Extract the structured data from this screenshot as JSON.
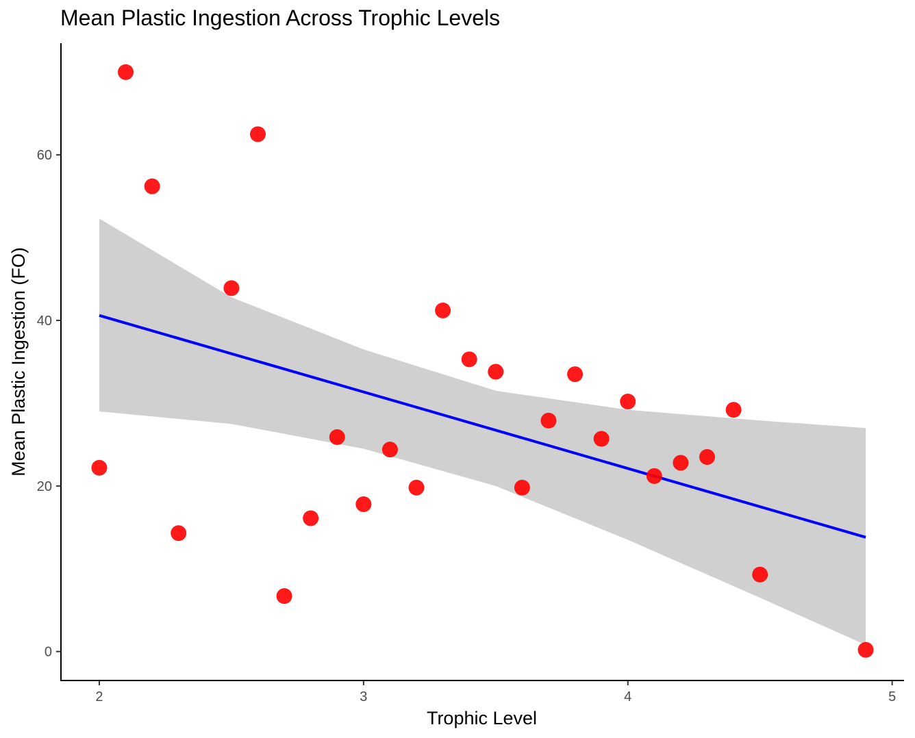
{
  "chart_data": {
    "type": "scatter",
    "title": "Mean Plastic Ingestion Across Trophic Levels",
    "xlabel": "Trophic Level",
    "ylabel": "Mean Plastic Ingestion (FO)",
    "xlim": [
      1.855,
      5.045
    ],
    "ylim": [
      -3.5,
      73.5
    ],
    "x_ticks": [
      2,
      3,
      4,
      5
    ],
    "y_ticks": [
      0,
      20,
      40,
      60
    ],
    "grid": false,
    "series": [
      {
        "point_color": "#FF0000",
        "points": [
          {
            "x": 2.0,
            "y": 22.2
          },
          {
            "x": 2.1,
            "y": 70.0
          },
          {
            "x": 2.2,
            "y": 56.2
          },
          {
            "x": 2.3,
            "y": 14.3
          },
          {
            "x": 2.5,
            "y": 43.9
          },
          {
            "x": 2.6,
            "y": 62.5
          },
          {
            "x": 2.7,
            "y": 6.7
          },
          {
            "x": 2.8,
            "y": 16.1
          },
          {
            "x": 2.9,
            "y": 25.9
          },
          {
            "x": 3.0,
            "y": 17.8
          },
          {
            "x": 3.1,
            "y": 24.4
          },
          {
            "x": 3.2,
            "y": 19.8
          },
          {
            "x": 3.3,
            "y": 41.2
          },
          {
            "x": 3.4,
            "y": 35.3
          },
          {
            "x": 3.5,
            "y": 33.8
          },
          {
            "x": 3.6,
            "y": 19.8
          },
          {
            "x": 3.7,
            "y": 27.9
          },
          {
            "x": 3.8,
            "y": 33.5
          },
          {
            "x": 3.9,
            "y": 25.7
          },
          {
            "x": 4.0,
            "y": 30.2
          },
          {
            "x": 4.1,
            "y": 21.2
          },
          {
            "x": 4.2,
            "y": 22.8
          },
          {
            "x": 4.3,
            "y": 23.5
          },
          {
            "x": 4.4,
            "y": 29.2
          },
          {
            "x": 4.5,
            "y": 9.3
          },
          {
            "x": 4.9,
            "y": 0.2
          }
        ]
      }
    ],
    "fit_line": {
      "color": "#0000FF",
      "x": [
        2.0,
        4.9
      ],
      "y": [
        40.6,
        13.8
      ]
    },
    "confidence_band": {
      "color": "#D0D0D0",
      "x": [
        2.0,
        2.5,
        3.0,
        3.5,
        4.0,
        4.5,
        4.9
      ],
      "lower": [
        29.0,
        27.5,
        24.5,
        20.0,
        13.5,
        6.5,
        0.8
      ],
      "upper": [
        52.3,
        42.8,
        36.5,
        31.5,
        29.2,
        27.9,
        27.0
      ]
    }
  }
}
